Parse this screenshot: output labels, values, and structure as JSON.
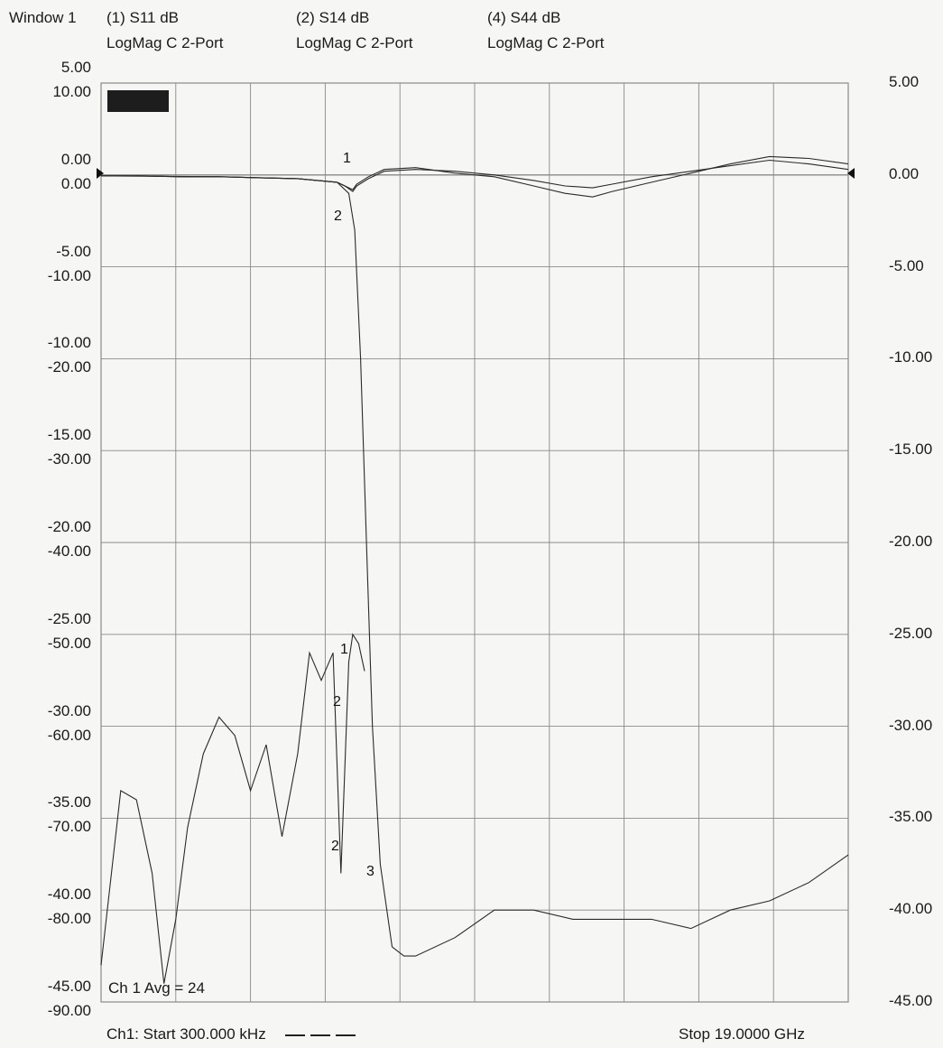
{
  "window_label": "Window 1",
  "traces": [
    {
      "id": "(1)",
      "param": "S11 dB",
      "format": "LogMag C  2-Port"
    },
    {
      "id": "(2)",
      "param": "S14 dB",
      "format": "LogMag C  2-Port"
    },
    {
      "id": "(4)",
      "param": "S44 dB",
      "format": "LogMag C  2-Port"
    }
  ],
  "footer": {
    "start": "Ch1: Start  300.000 kHz",
    "stop": "Stop  19.0000 GHz",
    "avg": "Ch 1 Avg =   24"
  },
  "markers": [
    "1",
    "2",
    "1",
    "2",
    "2",
    "3"
  ],
  "colors": {
    "trace": "#2a2a2a",
    "grid": "#8a8a8a",
    "background": "#f6f6f4"
  },
  "chart_data": {
    "type": "line",
    "x_range": [
      "300.000 kHz",
      "19.0000 GHz"
    ],
    "x_unit": "GHz",
    "xlim": [
      0.0003,
      19.0
    ],
    "grid": true,
    "y_left_outer": {
      "ticks": [
        "5.00",
        "0.00",
        "-5.00",
        "-10.00",
        "-15.00",
        "-20.00",
        "-25.00",
        "-30.00",
        "-35.00",
        "-40.00",
        "-45.00"
      ],
      "ylim": [
        -45,
        5
      ]
    },
    "y_left_inner": {
      "ticks": [
        "10.00",
        "0.00",
        "-10.00",
        "-20.00",
        "-30.00",
        "-40.00",
        "-50.00",
        "-60.00",
        "-70.00",
        "-80.00",
        "-90.00"
      ],
      "ylim": [
        -90,
        10
      ]
    },
    "y_right": {
      "ticks": [
        "5.00",
        "0.00",
        "-5.00",
        "-10.00",
        "-15.00",
        "-20.00",
        "-25.00",
        "-30.00",
        "-35.00",
        "-40.00",
        "-45.00"
      ],
      "ylim": [
        -45,
        5
      ]
    },
    "series": [
      {
        "axis": "outer",
        "x": [
          0.0003,
          1.0,
          2.0,
          3.0,
          4.0,
          5.0,
          6.0,
          6.2,
          6.4,
          6.5,
          6.8,
          7.2,
          8.0,
          9.0,
          10.0,
          11.0,
          11.8,
          12.5,
          13.0,
          14.0,
          15.0,
          16.0,
          17.0,
          18.0,
          19.0
        ],
        "y": [
          -0.05,
          -0.05,
          -0.1,
          -0.1,
          -0.15,
          -0.2,
          -0.4,
          -0.6,
          -0.9,
          -0.6,
          -0.2,
          0.2,
          0.3,
          0.2,
          0.0,
          -0.3,
          -0.6,
          -0.7,
          -0.5,
          -0.1,
          0.2,
          0.5,
          0.8,
          0.6,
          0.3
        ]
      },
      {
        "axis": "outer",
        "x": [
          0.0003,
          1.0,
          2.0,
          3.0,
          4.0,
          5.0,
          6.0,
          6.2,
          6.4,
          6.5,
          6.8,
          7.2,
          8.0,
          9.0,
          10.0,
          11.0,
          11.8,
          12.5,
          13.0,
          14.0,
          15.0,
          16.0,
          17.0,
          18.0,
          19.0
        ],
        "y": [
          -0.05,
          -0.05,
          -0.1,
          -0.1,
          -0.15,
          -0.2,
          -0.4,
          -0.6,
          -0.8,
          -0.5,
          -0.1,
          0.3,
          0.4,
          0.1,
          -0.1,
          -0.6,
          -1.0,
          -1.2,
          -0.9,
          -0.4,
          0.1,
          0.6,
          1.0,
          0.9,
          0.6
        ]
      },
      {
        "axis": "outer",
        "x": [
          0.0003,
          3.0,
          5.0,
          6.0,
          6.3,
          6.45,
          6.6,
          6.75,
          6.9,
          7.1,
          7.4,
          7.7,
          8.0,
          9.0,
          10.0,
          11.0,
          12.0,
          13.0,
          14.0,
          15.0,
          16.0,
          17.0,
          18.0,
          19.0
        ],
        "y": [
          -0.05,
          -0.1,
          -0.2,
          -0.4,
          -1.0,
          -3.0,
          -10.0,
          -20.0,
          -30.0,
          -37.5,
          -42.0,
          -42.5,
          -42.5,
          -41.5,
          -40.0,
          -40.0,
          -40.5,
          -40.5,
          -40.5,
          -41.0,
          -40.0,
          -39.5,
          -38.5,
          -37.0
        ]
      },
      {
        "axis": "outer",
        "x": [
          0.0003,
          0.5,
          0.9,
          1.3,
          1.6,
          1.9,
          2.2,
          2.6,
          3.0,
          3.4,
          3.8,
          4.2,
          4.6,
          5.0,
          5.3,
          5.6,
          5.9,
          6.1,
          6.3,
          6.4,
          6.55,
          6.7
        ],
        "y": [
          -43.0,
          -33.5,
          -34.0,
          -38.0,
          -44.0,
          -40.5,
          -35.5,
          -31.5,
          -29.5,
          -30.5,
          -33.5,
          -31.0,
          -36.0,
          -31.5,
          -26.0,
          -27.5,
          -26.0,
          -38.0,
          -26.5,
          -25.0,
          -25.5,
          -27.0
        ]
      }
    ]
  }
}
